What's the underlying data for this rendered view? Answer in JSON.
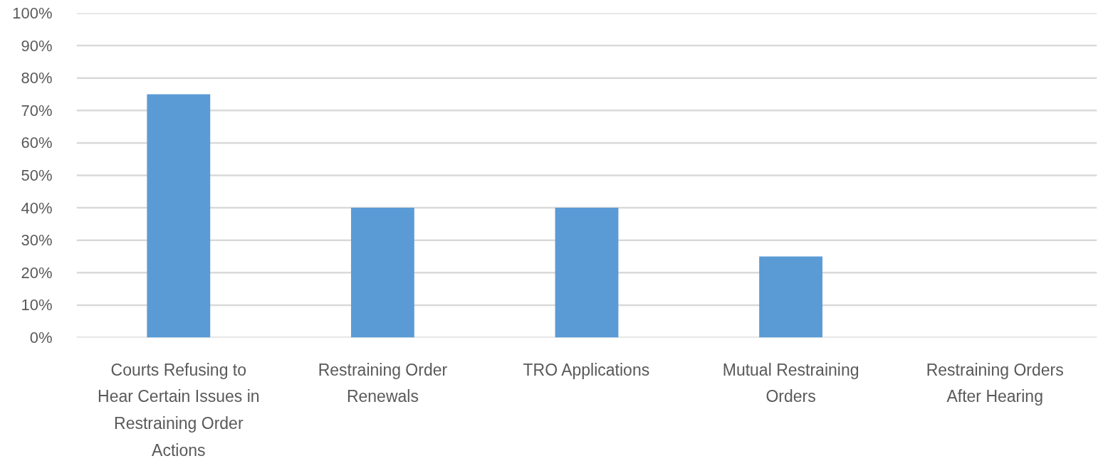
{
  "chart_data": {
    "type": "bar",
    "categories": [
      "Courts Refusing to Hear Certain Issues in Restraining Order Actions",
      "Restraining Order Renewals",
      "TRO Applications",
      "Mutual Restraining Orders",
      "Restraining Orders After Hearing"
    ],
    "values": [
      75,
      40,
      40,
      25,
      0
    ],
    "color": "#5b9bd5",
    "ylim": [
      0,
      100
    ],
    "yticks": [
      {
        "value": 0,
        "label": "0%"
      },
      {
        "value": 10,
        "label": "10%"
      },
      {
        "value": 20,
        "label": "20%"
      },
      {
        "value": 30,
        "label": "30%"
      },
      {
        "value": 40,
        "label": "40%"
      },
      {
        "value": 50,
        "label": "50%"
      },
      {
        "value": 60,
        "label": "60%"
      },
      {
        "value": 70,
        "label": "70%"
      },
      {
        "value": 80,
        "label": "80%"
      },
      {
        "value": 90,
        "label": "90%"
      },
      {
        "value": 100,
        "label": "100%"
      }
    ],
    "grid": "y"
  }
}
